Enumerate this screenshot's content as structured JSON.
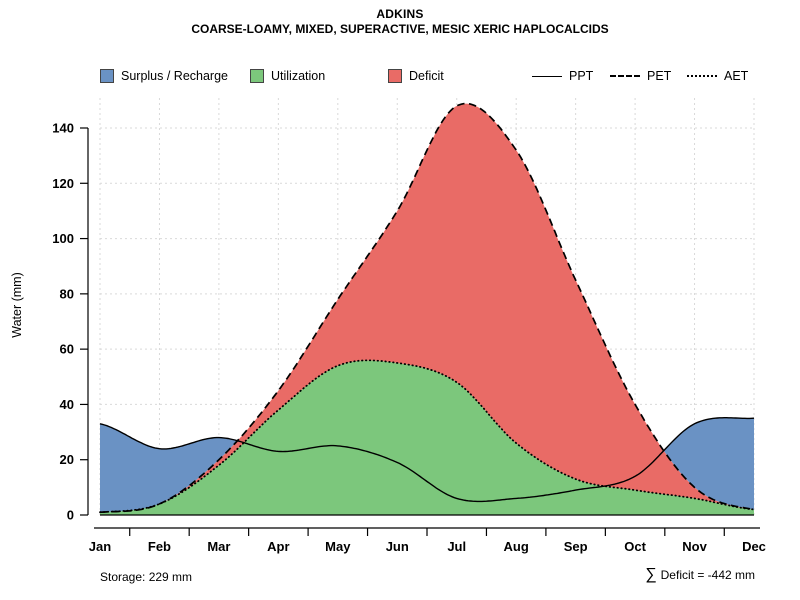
{
  "title": "ADKINS",
  "subtitle": "COARSE-LOAMY, MIXED, SUPERACTIVE, MESIC XERIC HAPLOCALCIDS",
  "legend": {
    "surplus": "Surplus / Recharge",
    "utilization": "Utilization",
    "deficit": "Deficit",
    "ppt": "PPT",
    "pet": "PET",
    "aet": "AET"
  },
  "footer": {
    "storage": "Storage: 229 mm",
    "sum_symbol": "∑",
    "deficit_text": "Deficit = -442 mm"
  },
  "chart_data": {
    "type": "area",
    "title": "ADKINS",
    "subtitle": "COARSE-LOAMY, MIXED, SUPERACTIVE, MESIC XERIC HAPLOCALCIDS",
    "xlabel": "",
    "ylabel": "Water (mm)",
    "ylim": [
      0,
      155
    ],
    "yticks": [
      0,
      20,
      40,
      60,
      80,
      100,
      120,
      140
    ],
    "grid": true,
    "legend_position": "top",
    "months": [
      "Jan",
      "Feb",
      "Mar",
      "Apr",
      "May",
      "Jun",
      "Jul",
      "Aug",
      "Sep",
      "Oct",
      "Nov",
      "Dec"
    ],
    "series": [
      {
        "name": "PPT",
        "label": "PPT",
        "line_style": "solid",
        "values": [
          33,
          24,
          28,
          23,
          25,
          19,
          6,
          6,
          9,
          14,
          33,
          35
        ]
      },
      {
        "name": "PET",
        "label": "PET",
        "line_style": "dashed",
        "values": [
          1,
          4,
          20,
          45,
          78,
          110,
          148,
          132,
          85,
          40,
          10,
          2
        ]
      },
      {
        "name": "AET",
        "label": "AET",
        "line_style": "dotted",
        "values": [
          1,
          4,
          18,
          38,
          54,
          55,
          48,
          26,
          13,
          9,
          6,
          2
        ]
      }
    ],
    "areas": [
      {
        "name": "Surplus / Recharge",
        "between": [
          "PET",
          "PPT"
        ],
        "where": "PPT > PET",
        "color": "#6a92c4"
      },
      {
        "name": "Utilization",
        "between": [
          "0",
          "AET"
        ],
        "color": "#7cc77c"
      },
      {
        "name": "Deficit",
        "between": [
          "AET",
          "PET"
        ],
        "where": "PET > AET",
        "color": "#e96b66"
      }
    ],
    "colors": {
      "surplus": "#6a92c4",
      "utilization": "#7cc77c",
      "deficit": "#e96b66"
    },
    "annotations": {
      "storage_mm": 229,
      "deficit_sum_mm": -442
    }
  }
}
